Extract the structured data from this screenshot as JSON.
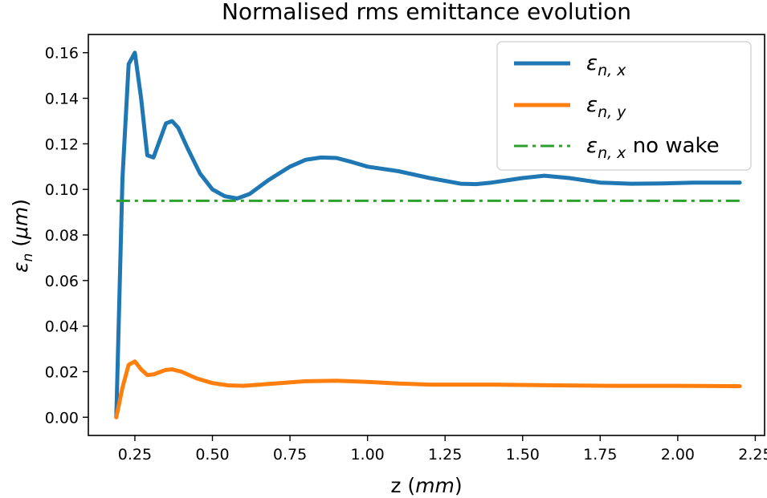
{
  "chart_data": {
    "type": "line",
    "title": "Normalised rms emittance evolution",
    "xlabel": {
      "prefix": "z (",
      "unit": "mm",
      "suffix": ")"
    },
    "ylabel": {
      "symbol": "ε",
      "sub": "n",
      "prefix": " (",
      "unit": "μm",
      "suffix": ")"
    },
    "xlim": [
      0.1,
      2.28
    ],
    "ylim": [
      -0.008,
      0.168
    ],
    "xticks": [
      0.25,
      0.5,
      0.75,
      1.0,
      1.25,
      1.5,
      1.75,
      2.0,
      2.25
    ],
    "xtick_labels": [
      "0.25",
      "0.50",
      "0.75",
      "1.00",
      "1.25",
      "1.50",
      "1.75",
      "2.00",
      "2.25"
    ],
    "yticks": [
      0.0,
      0.02,
      0.04,
      0.06,
      0.08,
      0.1,
      0.12,
      0.14,
      0.16
    ],
    "ytick_labels": [
      "0.00",
      "0.02",
      "0.04",
      "0.06",
      "0.08",
      "0.10",
      "0.12",
      "0.14",
      "0.16"
    ],
    "grid": false,
    "legend_position": "top-right",
    "series": [
      {
        "name": {
          "symbol": "ε",
          "sub": "n, x",
          "suffix": ""
        },
        "color": "#1f77b4",
        "style": "solid",
        "x": [
          0.19,
          0.21,
          0.23,
          0.25,
          0.27,
          0.29,
          0.31,
          0.35,
          0.37,
          0.39,
          0.42,
          0.46,
          0.5,
          0.54,
          0.58,
          0.62,
          0.68,
          0.75,
          0.8,
          0.85,
          0.9,
          0.95,
          1.0,
          1.1,
          1.2,
          1.3,
          1.35,
          1.4,
          1.5,
          1.57,
          1.65,
          1.75,
          1.85,
          1.95,
          2.05,
          2.2
        ],
        "y": [
          0.0,
          0.105,
          0.155,
          0.16,
          0.14,
          0.115,
          0.114,
          0.129,
          0.13,
          0.127,
          0.118,
          0.107,
          0.1,
          0.097,
          0.096,
          0.098,
          0.104,
          0.11,
          0.113,
          0.114,
          0.1138,
          0.112,
          0.11,
          0.108,
          0.105,
          0.1025,
          0.1023,
          0.103,
          0.105,
          0.106,
          0.105,
          0.103,
          0.1025,
          0.1026,
          0.103,
          0.103
        ]
      },
      {
        "name": {
          "symbol": "ε",
          "sub": "n, y",
          "suffix": ""
        },
        "color": "#ff7f0e",
        "style": "solid",
        "x": [
          0.19,
          0.21,
          0.23,
          0.25,
          0.27,
          0.29,
          0.31,
          0.35,
          0.37,
          0.4,
          0.45,
          0.5,
          0.55,
          0.6,
          0.7,
          0.8,
          0.9,
          1.0,
          1.1,
          1.2,
          1.4,
          1.6,
          1.8,
          2.0,
          2.2
        ],
        "y": [
          0.0,
          0.013,
          0.023,
          0.0245,
          0.021,
          0.0185,
          0.0188,
          0.0208,
          0.021,
          0.02,
          0.017,
          0.015,
          0.014,
          0.0138,
          0.0148,
          0.0158,
          0.016,
          0.0155,
          0.0148,
          0.0143,
          0.0143,
          0.014,
          0.0138,
          0.0138,
          0.0136
        ]
      },
      {
        "name": {
          "symbol": "ε",
          "sub": "n, x",
          "suffix": " no wake"
        },
        "color": "#2ca02c",
        "style": "dashdot",
        "x": [
          0.19,
          2.2
        ],
        "y": [
          0.095,
          0.095
        ]
      }
    ]
  }
}
